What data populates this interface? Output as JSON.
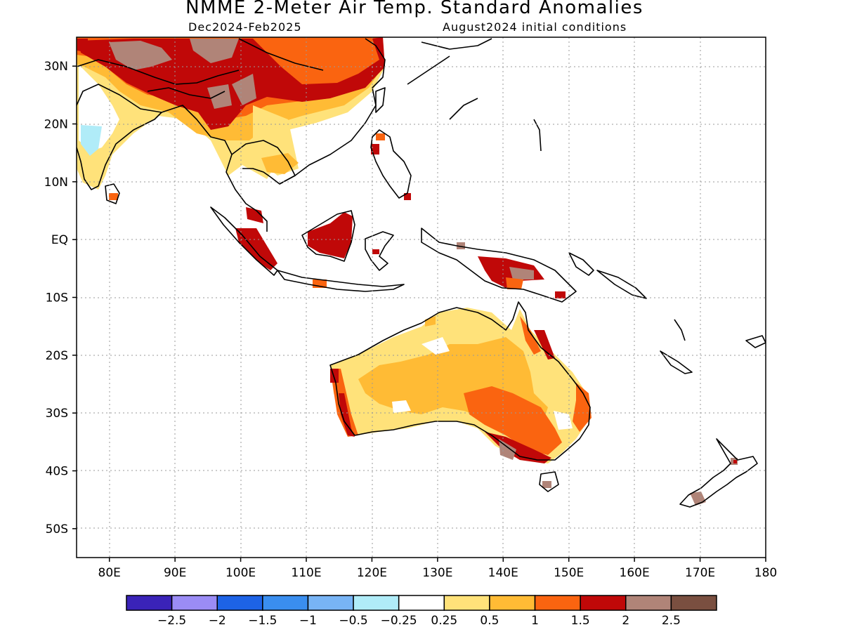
{
  "title": "NMME 2-Meter Air Temp. Standard Anomalies",
  "subtitle_left": "Dec2024-Feb2025",
  "subtitle_right": "August2024 initial conditions",
  "map": {
    "lon_range": [
      75,
      180
    ],
    "lat_range": [
      -55,
      35
    ],
    "lat_ticks": [
      {
        "value": 30,
        "label": "30N"
      },
      {
        "value": 20,
        "label": "20N"
      },
      {
        "value": 10,
        "label": "10N"
      },
      {
        "value": 0,
        "label": "EQ"
      },
      {
        "value": -10,
        "label": "10S"
      },
      {
        "value": -20,
        "label": "20S"
      },
      {
        "value": -30,
        "label": "30S"
      },
      {
        "value": -40,
        "label": "40S"
      },
      {
        "value": -50,
        "label": "50S"
      }
    ],
    "lon_ticks": [
      {
        "value": 80,
        "label": "80E"
      },
      {
        "value": 90,
        "label": "90E"
      },
      {
        "value": 100,
        "label": "100E"
      },
      {
        "value": 110,
        "label": "110E"
      },
      {
        "value": 120,
        "label": "120E"
      },
      {
        "value": 130,
        "label": "130E"
      },
      {
        "value": 140,
        "label": "140E"
      },
      {
        "value": 150,
        "label": "150E"
      },
      {
        "value": 160,
        "label": "160E"
      },
      {
        "value": 170,
        "label": "170E"
      },
      {
        "value": 180,
        "label": "180"
      }
    ],
    "grid": "dotted"
  },
  "colorbar": {
    "colors": [
      "#3a23b8",
      "#9b8cf5",
      "#1d63e6",
      "#3a8eef",
      "#78b4f5",
      "#b0ecf8",
      "#ffffff",
      "#ffe27a",
      "#ffbb35",
      "#fa6410",
      "#c00808",
      "#b08478",
      "#7a4f40"
    ],
    "labels": [
      "-2.5",
      "-2",
      "-1.5",
      "-1",
      "-0.5",
      "-0.25",
      "0.25",
      "0.5",
      "1",
      "1.5",
      "2",
      "2.5"
    ]
  }
}
